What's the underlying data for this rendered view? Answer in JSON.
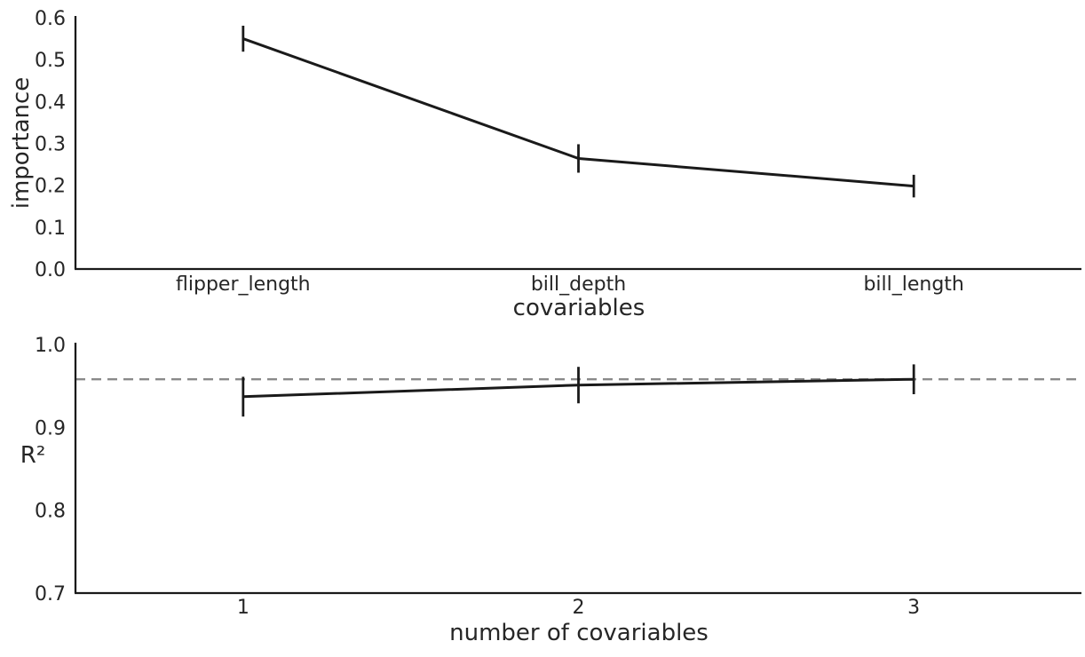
{
  "figure": {
    "background": "#ffffff",
    "text_color": "#262626",
    "line_color": "#1a1a1a",
    "spine_color": "#1a1a1a",
    "dashed_color": "#8a8a8a"
  },
  "chart_data": [
    {
      "type": "line",
      "title": "",
      "xlabel": "covariables",
      "ylabel": "importance",
      "categories": [
        "flipper_length",
        "bill_depth",
        "bill_length"
      ],
      "values": [
        0.55,
        0.264,
        0.198
      ],
      "errors": [
        0.031,
        0.034,
        0.027
      ],
      "ylim": [
        0.0,
        0.6
      ],
      "yticks": [
        {
          "label": "0.0",
          "value": 0.0
        },
        {
          "label": "0.1",
          "value": 0.1
        },
        {
          "label": "0.2",
          "value": 0.2
        },
        {
          "label": "0.3",
          "value": 0.3
        },
        {
          "label": "0.4",
          "value": 0.4
        },
        {
          "label": "0.5",
          "value": 0.5
        },
        {
          "label": "0.6",
          "value": 0.6
        }
      ],
      "grid": false,
      "legend": false,
      "error_bar_style": "vertical-line-no-cap",
      "spines": [
        "left",
        "bottom"
      ]
    },
    {
      "type": "line",
      "title": "",
      "xlabel": "number of covariables",
      "ylabel": "R²",
      "categories": [
        "1",
        "2",
        "3"
      ],
      "values": [
        0.937,
        0.951,
        0.958
      ],
      "errors": [
        0.024,
        0.022,
        0.018
      ],
      "ylim": [
        0.7,
        1.0
      ],
      "yticks": [
        {
          "label": "0.7",
          "value": 0.7
        },
        {
          "label": "0.8",
          "value": 0.8
        },
        {
          "label": "0.9",
          "value": 0.9
        },
        {
          "label": "1.0",
          "value": 1.0
        }
      ],
      "reference_line": {
        "value": 0.958,
        "style": "dashed",
        "color": "#8a8a8a"
      },
      "grid": false,
      "legend": false,
      "error_bar_style": "vertical-line-no-cap",
      "spines": [
        "left",
        "bottom"
      ]
    }
  ]
}
